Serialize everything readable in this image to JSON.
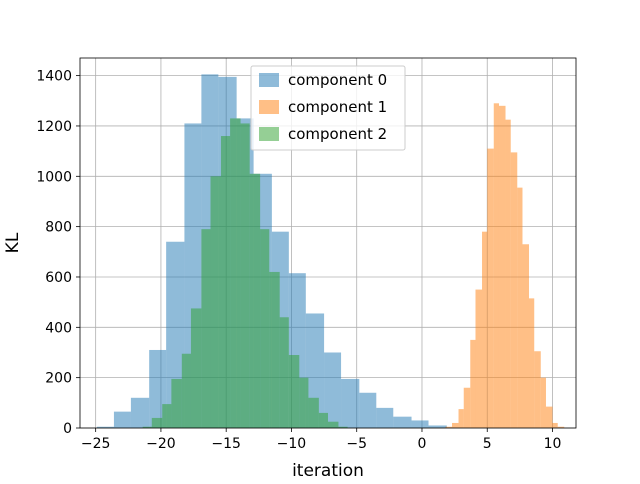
{
  "chart_data": {
    "type": "histogram",
    "title": "",
    "xlabel": "iteration",
    "ylabel": "KL",
    "xlim": [
      -26.2,
      11.8
    ],
    "ylim": [
      0,
      1470
    ],
    "x_ticks": [
      -25,
      -20,
      -15,
      -10,
      -5,
      0,
      5,
      10
    ],
    "x_tick_labels": [
      "−25",
      "−20",
      "−15",
      "−10",
      "−5",
      "0",
      "5",
      "10"
    ],
    "y_ticks": [
      0,
      200,
      400,
      600,
      800,
      1000,
      1200,
      1400
    ],
    "y_tick_labels": [
      "0",
      "200",
      "400",
      "600",
      "800",
      "1000",
      "1200",
      "1400"
    ],
    "grid": true,
    "legend_position": "top-center",
    "series": [
      {
        "name": "component 0",
        "color": "#1f77b4",
        "opacity": 0.5,
        "bins": [
          {
            "x0": -24.9,
            "x1": -23.6,
            "count": 5
          },
          {
            "x0": -23.6,
            "x1": -22.3,
            "count": 65
          },
          {
            "x0": -22.3,
            "x1": -20.9,
            "count": 120
          },
          {
            "x0": -20.9,
            "x1": -19.6,
            "count": 310
          },
          {
            "x0": -19.6,
            "x1": -18.2,
            "count": 740
          },
          {
            "x0": -18.2,
            "x1": -16.9,
            "count": 1210
          },
          {
            "x0": -16.9,
            "x1": -15.6,
            "count": 1405
          },
          {
            "x0": -15.6,
            "x1": -14.2,
            "count": 1395
          },
          {
            "x0": -14.2,
            "x1": -12.9,
            "count": 1230
          },
          {
            "x0": -12.9,
            "x1": -11.5,
            "count": 1010
          },
          {
            "x0": -11.5,
            "x1": -10.2,
            "count": 780
          },
          {
            "x0": -10.2,
            "x1": -8.9,
            "count": 615
          },
          {
            "x0": -8.9,
            "x1": -7.5,
            "count": 455
          },
          {
            "x0": -7.5,
            "x1": -6.2,
            "count": 300
          },
          {
            "x0": -6.2,
            "x1": -4.8,
            "count": 195
          },
          {
            "x0": -4.8,
            "x1": -3.5,
            "count": 140
          },
          {
            "x0": -3.5,
            "x1": -2.2,
            "count": 80
          },
          {
            "x0": -2.2,
            "x1": -0.8,
            "count": 45
          },
          {
            "x0": -0.8,
            "x1": 0.5,
            "count": 30
          },
          {
            "x0": 0.5,
            "x1": 1.9,
            "count": 10
          }
        ]
      },
      {
        "name": "component 1",
        "color": "#ff7f0e",
        "opacity": 0.5,
        "bins": [
          {
            "x0": 1.8,
            "x1": 2.3,
            "count": 5
          },
          {
            "x0": 2.3,
            "x1": 2.8,
            "count": 20
          },
          {
            "x0": 2.8,
            "x1": 3.2,
            "count": 75
          },
          {
            "x0": 3.2,
            "x1": 3.7,
            "count": 160
          },
          {
            "x0": 3.7,
            "x1": 4.1,
            "count": 350
          },
          {
            "x0": 4.1,
            "x1": 4.6,
            "count": 550
          },
          {
            "x0": 4.6,
            "x1": 5.0,
            "count": 780
          },
          {
            "x0": 5.0,
            "x1": 5.5,
            "count": 1110
          },
          {
            "x0": 5.5,
            "x1": 5.9,
            "count": 1290
          },
          {
            "x0": 5.9,
            "x1": 6.4,
            "count": 1280
          },
          {
            "x0": 6.4,
            "x1": 6.8,
            "count": 1225
          },
          {
            "x0": 6.8,
            "x1": 7.3,
            "count": 1095
          },
          {
            "x0": 7.3,
            "x1": 7.7,
            "count": 955
          },
          {
            "x0": 7.7,
            "x1": 8.2,
            "count": 730
          },
          {
            "x0": 8.2,
            "x1": 8.6,
            "count": 515
          },
          {
            "x0": 8.6,
            "x1": 9.1,
            "count": 305
          },
          {
            "x0": 9.1,
            "x1": 9.5,
            "count": 200
          },
          {
            "x0": 9.5,
            "x1": 10.0,
            "count": 85
          },
          {
            "x0": 10.0,
            "x1": 10.4,
            "count": 20
          },
          {
            "x0": 10.4,
            "x1": 10.9,
            "count": 5
          }
        ]
      },
      {
        "name": "component 2",
        "color": "#2ca02c",
        "opacity": 0.5,
        "bins": [
          {
            "x0": -21.4,
            "x1": -20.7,
            "count": 5
          },
          {
            "x0": -20.7,
            "x1": -19.9,
            "count": 40
          },
          {
            "x0": -19.9,
            "x1": -19.2,
            "count": 95
          },
          {
            "x0": -19.2,
            "x1": -18.4,
            "count": 195
          },
          {
            "x0": -18.4,
            "x1": -17.7,
            "count": 295
          },
          {
            "x0": -17.7,
            "x1": -16.9,
            "count": 475
          },
          {
            "x0": -16.9,
            "x1": -16.2,
            "count": 790
          },
          {
            "x0": -16.2,
            "x1": -15.4,
            "count": 1000
          },
          {
            "x0": -15.4,
            "x1": -14.7,
            "count": 1160
          },
          {
            "x0": -14.7,
            "x1": -13.9,
            "count": 1230
          },
          {
            "x0": -13.9,
            "x1": -13.2,
            "count": 1210
          },
          {
            "x0": -13.2,
            "x1": -12.4,
            "count": 1010
          },
          {
            "x0": -12.4,
            "x1": -11.7,
            "count": 790
          },
          {
            "x0": -11.7,
            "x1": -10.9,
            "count": 620
          },
          {
            "x0": -10.9,
            "x1": -10.2,
            "count": 440
          },
          {
            "x0": -10.2,
            "x1": -9.4,
            "count": 290
          },
          {
            "x0": -9.4,
            "x1": -8.7,
            "count": 200
          },
          {
            "x0": -8.7,
            "x1": -7.9,
            "count": 120
          },
          {
            "x0": -7.9,
            "x1": -7.2,
            "count": 60
          },
          {
            "x0": -7.2,
            "x1": -6.4,
            "count": 25
          },
          {
            "x0": -6.4,
            "x1": -5.7,
            "count": 5
          }
        ]
      }
    ]
  }
}
